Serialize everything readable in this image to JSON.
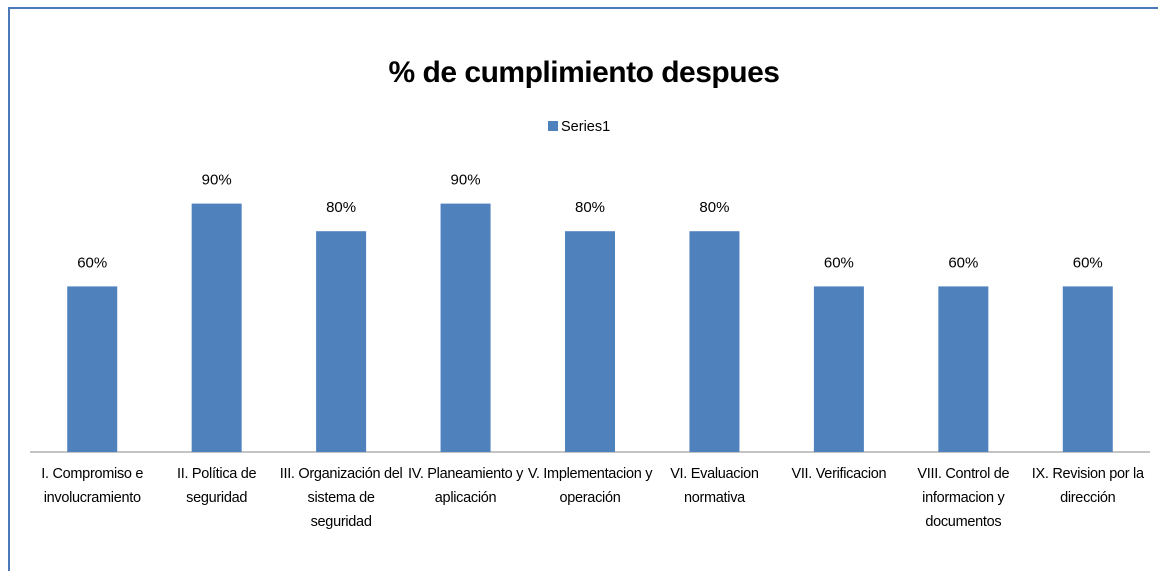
{
  "chart_data": {
    "type": "bar",
    "title": "% de cumplimiento despues",
    "categories": [
      "I. Compromiso e involucramiento",
      "II. Política de seguridad",
      "III. Organización del sistema de seguridad",
      "IV. Planeamiento y aplicación",
      "V. Implementacion y operación",
      "VI. Evaluacion normativa",
      "VII. Verificacion",
      "VIII. Control de informacion y documentos",
      "IX. Revision por la dirección"
    ],
    "series": [
      {
        "name": "Series1",
        "color": "#4f81bd",
        "values": [
          60,
          90,
          80,
          90,
          80,
          80,
          60,
          60,
          60
        ],
        "value_labels": [
          "60%",
          "90%",
          "80%",
          "90%",
          "80%",
          "80%",
          "60%",
          "60%",
          "60%"
        ]
      }
    ],
    "ylim": [
      0,
      100
    ],
    "legend": "top"
  }
}
